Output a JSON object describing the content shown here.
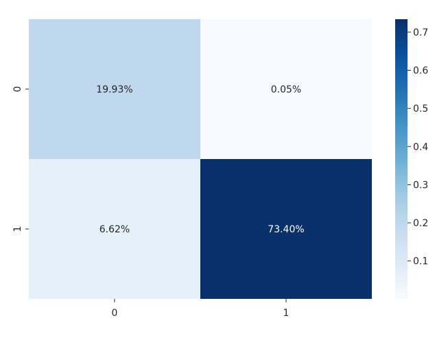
{
  "chart_data": {
    "type": "heatmap",
    "rows": [
      "0",
      "1"
    ],
    "cols": [
      "0",
      "1"
    ],
    "values": [
      [
        0.1993,
        0.0005
      ],
      [
        0.0662,
        0.734
      ]
    ],
    "cell_labels": [
      [
        "19.93%",
        "0.05%"
      ],
      [
        "6.62%",
        "73.40%"
      ]
    ],
    "colormap": "Blues",
    "colormap_colors": [
      "#f7fbff",
      "#deebf7",
      "#c6dbef",
      "#9ecae1",
      "#6baed6",
      "#4292c6",
      "#2171b5",
      "#08519c",
      "#08306b"
    ],
    "colorbar": {
      "vmin": 0.0005,
      "vmax": 0.734,
      "ticks": [
        "0.1",
        "0.2",
        "0.3",
        "0.4",
        "0.5",
        "0.6",
        "0.7"
      ]
    },
    "title": "",
    "xlabel": "",
    "ylabel": ""
  }
}
